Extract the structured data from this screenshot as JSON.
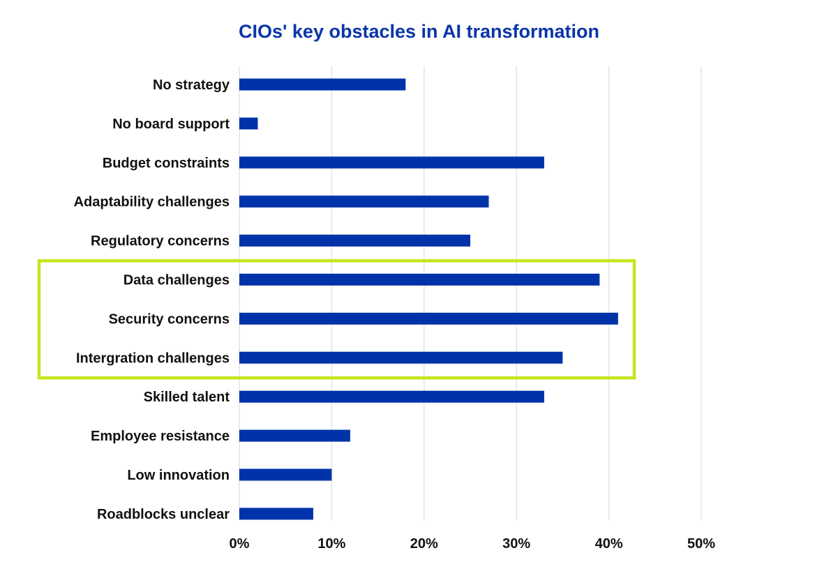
{
  "chart_data": {
    "type": "bar",
    "orientation": "horizontal",
    "title": "CIOs' key obstacles in AI transformation",
    "categories": [
      "No strategy",
      "No board support",
      "Budget constraints",
      "Adaptability challenges",
      "Regulatory concerns",
      "Data challenges",
      "Security concerns",
      "Intergration challenges",
      "Skilled talent",
      "Employee resistance",
      "Low innovation",
      "Roadblocks unclear"
    ],
    "values": [
      18,
      2,
      33,
      27,
      25,
      39,
      41,
      35,
      33,
      12,
      10,
      8
    ],
    "unit": "%",
    "xlim": [
      0,
      50
    ],
    "xticks": [
      "0%",
      "10%",
      "20%",
      "30%",
      "40%",
      "50%"
    ],
    "grid": true,
    "highlighted": [
      "Data challenges",
      "Security concerns",
      "Intergration challenges"
    ],
    "colors": {
      "bar": "#0033aa",
      "title": "#0a35a8",
      "highlight": "#c6e51f",
      "grid": "#e3e3e3"
    }
  }
}
